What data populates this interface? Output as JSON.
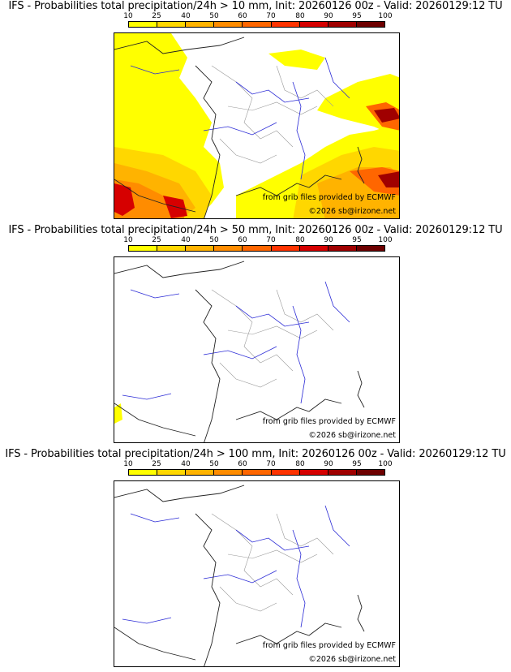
{
  "panels": [
    {
      "title": "IFS - Probabilities total precipitation/24h > 10 mm, Init: 20260126 00z - Valid: 20260129:12 TU",
      "threshold_mm": 10
    },
    {
      "title": "IFS - Probabilities total precipitation/24h > 50 mm, Init: 20260126 00z - Valid: 20260129:12 TU",
      "threshold_mm": 50
    },
    {
      "title": "IFS - Probabilities total precipitation/24h > 100 mm, Init: 20260126 00z - Valid: 20260129:12 TU",
      "threshold_mm": 100
    }
  ],
  "scale": {
    "labels": [
      "10",
      "25",
      "40",
      "50",
      "60",
      "70",
      "80",
      "90",
      "95",
      "100"
    ],
    "colors": [
      "#ffff00",
      "#ffd700",
      "#ffb300",
      "#ff8c00",
      "#ff6600",
      "#ff3300",
      "#d60000",
      "#a00000",
      "#6e0000"
    ]
  },
  "credits": {
    "source": "from grib files provided by ECMWF",
    "copyright": "©2026 sb@irizone.net"
  },
  "colors": {
    "coast": "#222222",
    "river": "#2b2bd6",
    "border": "#9a9a9a"
  }
}
